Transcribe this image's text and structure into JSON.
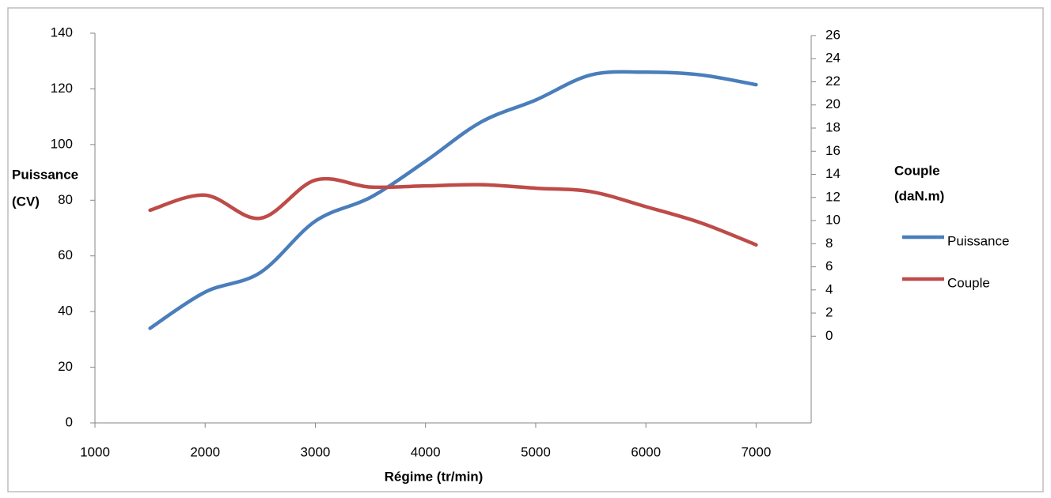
{
  "chart_data": {
    "type": "line",
    "xlabel": "Régime (tr/min)",
    "ylabel": [
      "Puissance",
      "(CV)"
    ],
    "y2label": [
      "Couple",
      "(daN.m)"
    ],
    "x": [
      1500,
      2000,
      2500,
      3000,
      3500,
      4000,
      4500,
      5000,
      5500,
      6000,
      6500,
      7000
    ],
    "series": [
      {
        "name": "Puissance",
        "color": "#4a7ebb",
        "values": [
          34,
          47,
          54,
          72.5,
          81,
          94,
          108,
          116,
          125,
          126,
          125,
          121.5
        ]
      },
      {
        "name": "Couple",
        "color": "#be4b48",
        "axis": "y2",
        "values": [
          10.9,
          12.2,
          10.2,
          13.5,
          12.9,
          13.0,
          13.1,
          12.8,
          12.5,
          11.2,
          9.8,
          7.9
        ]
      }
    ],
    "xlim": [
      1000,
      7500
    ],
    "xticks": [
      1000,
      2000,
      3000,
      4000,
      5000,
      6000,
      7000
    ],
    "ylim": [
      0,
      140
    ],
    "yticks": [
      0,
      20,
      40,
      60,
      80,
      100,
      120,
      140
    ],
    "y2lim": [
      -7.5,
      26
    ],
    "y2ticks": [
      0,
      2,
      4,
      6,
      8,
      10,
      12,
      14,
      16,
      18,
      20,
      22,
      24,
      26
    ],
    "legend": "right",
    "smooth": true
  }
}
